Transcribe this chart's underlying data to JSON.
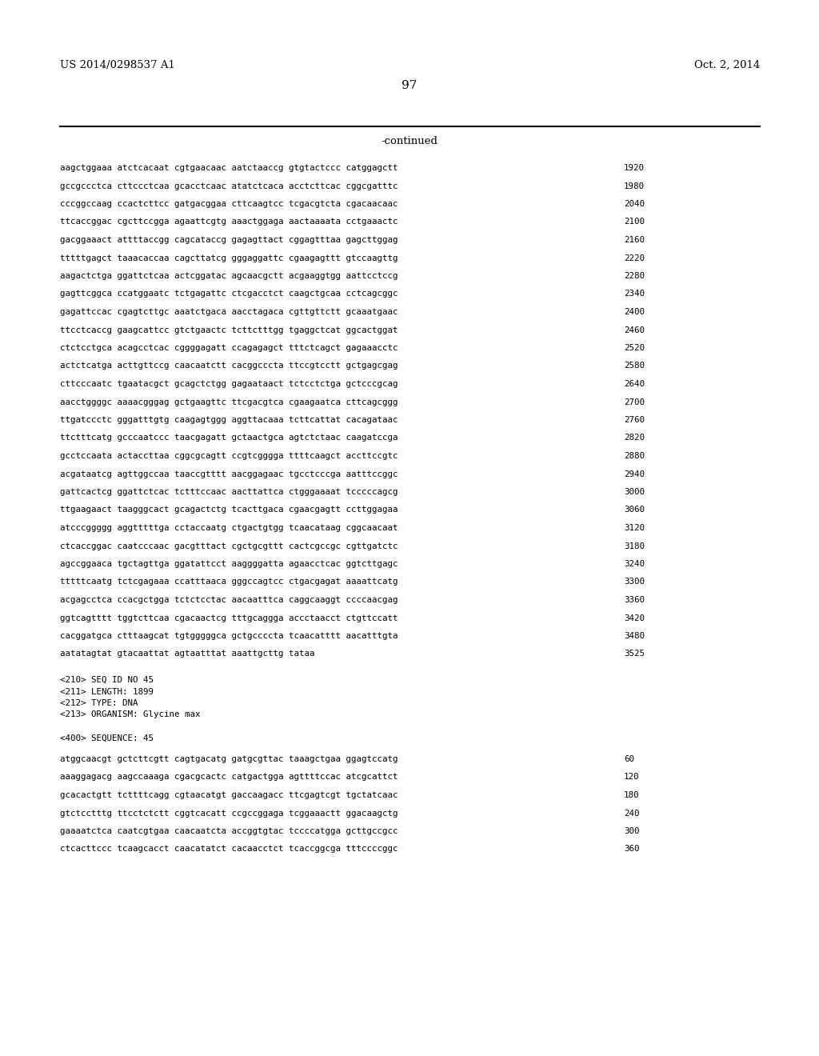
{
  "bg_color": "#ffffff",
  "header_left": "US 2014/0298537 A1",
  "header_right": "Oct. 2, 2014",
  "page_number": "97",
  "continued_label": "-continued",
  "sequence_lines": [
    {
      "text": "aagctggaaa atctcacaat cgtgaacaac aatctaaccg gtgtactccc catggagctt",
      "num": "1920"
    },
    {
      "text": "gccgccctca cttccctcaa gcacctcaac atatctcaca acctcttcac cggcgatttc",
      "num": "1980"
    },
    {
      "text": "cccggccaag ccactcttcc gatgacggaa cttcaagtcc tcgacgtcta cgacaacaac",
      "num": "2040"
    },
    {
      "text": "ttcaccggac cgcttccgga agaattcgtg aaactggaga aactaaaata cctgaaactc",
      "num": "2100"
    },
    {
      "text": "gacggaaact attttaccgg cagcataccg gagagttact cggagtttaa gagcttggag",
      "num": "2160"
    },
    {
      "text": "tttttgagct taaacaccaa cagcttatcg gggaggattc cgaagagttt gtccaagttg",
      "num": "2220"
    },
    {
      "text": "aagactctga ggattctcaa actcggatac agcaacgctt acgaaggtgg aattcctccg",
      "num": "2280"
    },
    {
      "text": "gagttcggca ccatggaatc tctgagattc ctcgacctct caagctgcaa cctcagcggc",
      "num": "2340"
    },
    {
      "text": "gagattccac cgagtcttgc aaatctgaca aacctagaca cgttgttctt gcaaatgaac",
      "num": "2400"
    },
    {
      "text": "ttcctcaccg gaagcattcc gtctgaactc tcttctttgg tgaggctcat ggcactggat",
      "num": "2460"
    },
    {
      "text": "ctctcctgca acagcctcac cggggagatt ccagagagct tttctcagct gagaaacctc",
      "num": "2520"
    },
    {
      "text": "actctcatga acttgttccg caacaatctt cacggcccta ttccgtcctt gctgagcgag",
      "num": "2580"
    },
    {
      "text": "cttcccaatc tgaatacgct gcagctctgg gagaataact tctcctctga gctcccgcag",
      "num": "2640"
    },
    {
      "text": "aacctggggc aaaacgggag gctgaagttc ttcgacgtca cgaagaatca cttcagcggg",
      "num": "2700"
    },
    {
      "text": "ttgatccctc gggatttgtg caagagtggg aggttacaaa tcttcattat cacagataac",
      "num": "2760"
    },
    {
      "text": "ttctttcatg gcccaatccc taacgagatt gctaactgca agtctctaac caagatccga",
      "num": "2820"
    },
    {
      "text": "gcctccaata actaccttaa cggcgcagtt ccgtcgggga ttttcaagct accttccgtc",
      "num": "2880"
    },
    {
      "text": "acgataatcg agttggccaa taaccgtttt aacggagaac tgcctcccga aatttccggc",
      "num": "2940"
    },
    {
      "text": "gattcactcg ggattctcac tctttccaac aacttattca ctgggaaaat tcccccagcg",
      "num": "3000"
    },
    {
      "text": "ttgaagaact taagggcact gcagactctg tcacttgaca cgaacgagtt ccttggagaa",
      "num": "3060"
    },
    {
      "text": "atcccggggg aggtttttga cctaccaatg ctgactgtgg tcaacataag cggcaacaat",
      "num": "3120"
    },
    {
      "text": "ctcaccggac caatcccaac gacgtttact cgctgcgttt cactcgccgc cgttgatctc",
      "num": "3180"
    },
    {
      "text": "agccggaaca tgctagttga ggatattcct aaggggatta agaacctcac ggtcttgagc",
      "num": "3240"
    },
    {
      "text": "tttttcaatg tctcgagaaa ccatttaaca gggccagtcc ctgacgagat aaaattcatg",
      "num": "3300"
    },
    {
      "text": "acgagcctca ccacgctgga tctctcctac aacaatttca caggcaaggt ccccaacgag",
      "num": "3360"
    },
    {
      "text": "ggtcagtttt tggtcttcaa cgacaactcg tttgcaggga accctaacct ctgttccatt",
      "num": "3420"
    },
    {
      "text": "cacggatgca ctttaagcat tgtgggggca gctgccccta tcaacatttt aacatttgta",
      "num": "3480"
    },
    {
      "text": "aatatagtat gtacaattat agtaatttat aaattgcttg tataa",
      "num": "3525"
    }
  ],
  "metadata_lines": [
    "<210> SEQ ID NO 45",
    "<211> LENGTH: 1899",
    "<212> TYPE: DNA",
    "<213> ORGANISM: Glycine max"
  ],
  "bottom_sequence_lines": [
    {
      "text": "atggcaacgt gctcttcgtt cagtgacatg gatgcgttac taaagctgaa ggagtccatg",
      "num": "60"
    },
    {
      "text": "aaaggagacg aagccaaaga cgacgcactc catgactgga agttttccac atcgcattct",
      "num": "120"
    },
    {
      "text": "gcacactgtt tcttttcagg cgtaacatgt gaccaagacc ttcgagtcgt tgctatcaac",
      "num": "180"
    },
    {
      "text": "gtctcctttg ttcctctctt cggtcacatt ccgccggaga tcggaaactt ggacaagctg",
      "num": "240"
    },
    {
      "text": "gaaaatctca caatcgtgaa caacaatcta accggtgtac tccccatgga gcttgccgcc",
      "num": "300"
    },
    {
      "text": "ctcacttccc tcaagcacct caacatatct cacaacctct tcaccggcga tttccccggc",
      "num": "360"
    }
  ],
  "seq400_label": "<400> SEQUENCE: 45",
  "mono_fontsize": 7.8,
  "header_fontsize": 9.5,
  "page_num_fontsize": 11
}
